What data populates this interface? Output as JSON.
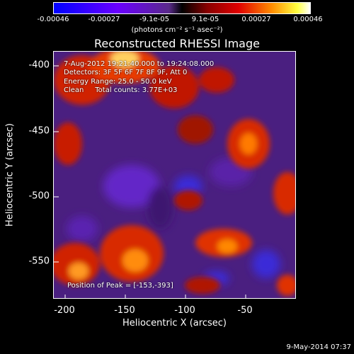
{
  "colorbar": {
    "tick_labels": [
      "-0.00046",
      "-0.00027",
      "-9.1e-05",
      "9.1e-05",
      "0.00027",
      "0.00046"
    ],
    "unit_label": "(photons cm⁻² s⁻¹ asec⁻²)",
    "range": [
      -0.00046,
      0.00046
    ]
  },
  "title": "Reconstructed RHESSI Image",
  "info": {
    "time_range": "7-Aug-2012 19:21:40.000 to 19:24:08.000",
    "detectors": "Detectors: 3F 5F 6F 7F 8F 9F, Att 0",
    "energy_range": "Energy Range: 25.0 - 50.0 keV",
    "algorithm": "Clean     Total counts: 3.77E+03",
    "peak": "Position of Peak = [-153,-393]"
  },
  "axes": {
    "xlabel": "Heliocentric X (arcsec)",
    "ylabel": "Heliocentric Y (arcsec)",
    "x_ticks": [
      "-200",
      "-150",
      "-100",
      "-50"
    ],
    "y_ticks": [
      "-400",
      "-450",
      "-500",
      "-550"
    ],
    "xlim": [
      -213,
      -13
    ],
    "ylim": [
      -584,
      -380
    ]
  },
  "footer_date": "9-May-2014 07:37"
}
